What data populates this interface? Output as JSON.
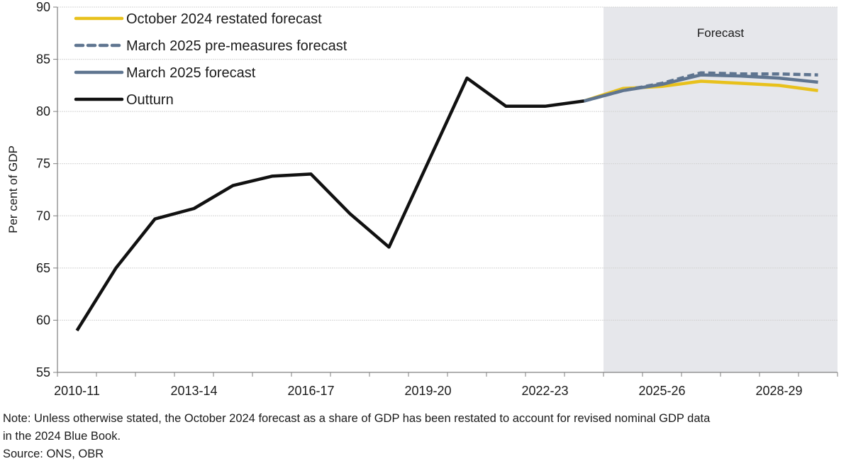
{
  "chart_data": {
    "type": "line",
    "title": "",
    "xlabel": "",
    "ylabel": "Per cent of GDP",
    "ylim": [
      55,
      90
    ],
    "yticks": [
      55,
      60,
      65,
      70,
      75,
      80,
      85,
      90
    ],
    "grid": true,
    "legend_position": "top-left",
    "categories": [
      "2010-11",
      "2011-12",
      "2012-13",
      "2013-14",
      "2014-15",
      "2015-16",
      "2016-17",
      "2017-18",
      "2018-19",
      "2019-20",
      "2020-21",
      "2021-22",
      "2022-23",
      "2023-24",
      "2024-25",
      "2025-26",
      "2026-27",
      "2027-28",
      "2028-29",
      "2029-30"
    ],
    "xtick_labels": [
      "2010-11",
      "2013-14",
      "2016-17",
      "2019-20",
      "2022-23",
      "2025-26",
      "2028-29"
    ],
    "forecast_region": {
      "start": "2024-25",
      "end": "2029-30",
      "label": "Forecast",
      "color": "#e6e7eb"
    },
    "series": [
      {
        "name": "October 2024 restated forecast",
        "color": "#e8c11c",
        "style": "solid",
        "values": [
          null,
          null,
          null,
          null,
          null,
          null,
          null,
          null,
          null,
          null,
          null,
          null,
          null,
          81.0,
          82.2,
          82.4,
          82.9,
          82.7,
          82.5,
          82.0
        ]
      },
      {
        "name": "March 2025 pre-measures forecast",
        "color": "#5f7590",
        "style": "dashed",
        "values": [
          null,
          null,
          null,
          null,
          null,
          null,
          null,
          null,
          null,
          null,
          null,
          null,
          null,
          81.0,
          82.0,
          82.7,
          83.7,
          83.6,
          83.6,
          83.5
        ]
      },
      {
        "name": "March 2025 forecast",
        "color": "#5f7590",
        "style": "solid",
        "values": [
          null,
          null,
          null,
          null,
          null,
          null,
          null,
          null,
          null,
          null,
          null,
          null,
          null,
          81.0,
          82.0,
          82.6,
          83.5,
          83.4,
          83.2,
          82.8
        ]
      },
      {
        "name": "Outturn",
        "color": "#111111",
        "style": "solid",
        "values": [
          59.0,
          65.0,
          69.7,
          70.7,
          72.9,
          73.8,
          74.0,
          70.2,
          67.0,
          75.1,
          83.2,
          80.5,
          80.5,
          81.0,
          null,
          null,
          null,
          null,
          null,
          null
        ]
      }
    ]
  },
  "notes": {
    "note_line1": "Note: Unless otherwise stated, the October 2024 forecast as a share of GDP has been restated to account for revised nominal GDP data",
    "note_line2": "in the 2024 Blue Book.",
    "source": "Source: ONS, OBR"
  }
}
